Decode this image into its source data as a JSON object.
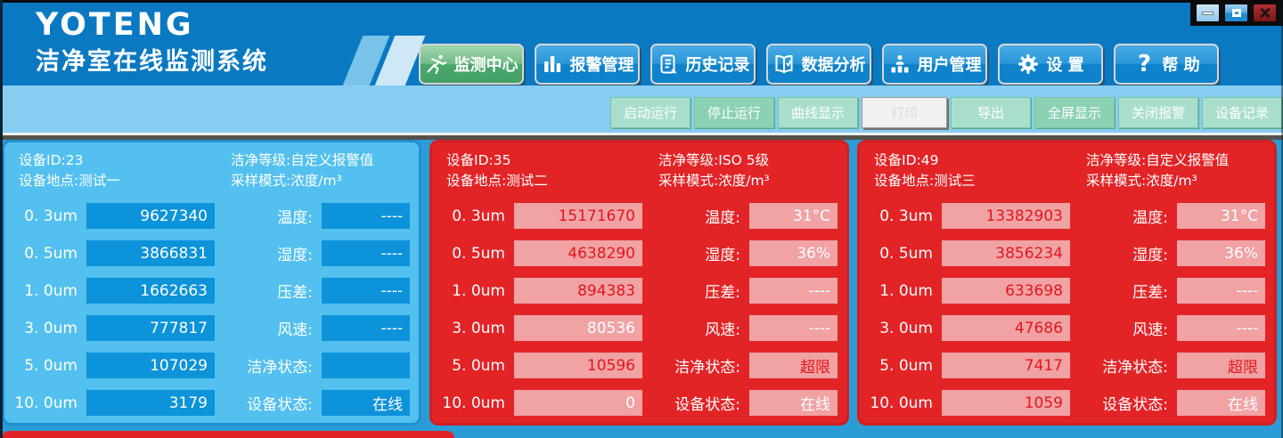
{
  "colors": {
    "header_blue": "#0a79c2",
    "toolbar_strip": "#87cdf2",
    "content_bg": "#2b9cd6",
    "panel_normal_bg": "#53c0ef",
    "panel_normal_box": "#0d93da",
    "panel_alarm_bg": "#e22427",
    "panel_alarm_box": "#f0a2a4",
    "alarm_text": "#e3171c",
    "nav_blue": "#1f8ed2",
    "nav_green_active": "#4aa76b",
    "toolbar_light_green": "#a9decd",
    "toolbar_dark_green": "#8bd2b3"
  },
  "header": {
    "brand": "YOTENG",
    "subtitle": "洁净室在线监测系统",
    "nav": [
      {
        "id": "monitor-center",
        "label": "监测中心",
        "icon": "runner-icon",
        "active": true
      },
      {
        "id": "alarm-management",
        "label": "报警管理",
        "icon": "bar-chart-icon",
        "active": false
      },
      {
        "id": "history-records",
        "label": "历史记录",
        "icon": "document-icon",
        "active": false
      },
      {
        "id": "data-analysis",
        "label": "数据分析",
        "icon": "open-book-icon",
        "active": false
      },
      {
        "id": "user-management",
        "label": "用户管理",
        "icon": "users-icon",
        "active": false
      },
      {
        "id": "settings",
        "label": "设 置",
        "icon": "gear-icon",
        "active": false
      },
      {
        "id": "help",
        "label": "帮 助",
        "icon": "question-icon",
        "active": false
      }
    ]
  },
  "window_controls": [
    {
      "id": "minimize",
      "icon": "minimize-icon"
    },
    {
      "id": "maximize",
      "icon": "maximize-icon"
    },
    {
      "id": "close",
      "icon": "close-icon"
    }
  ],
  "toolbar": {
    "buttons": [
      {
        "id": "start-run",
        "label": "启动运行",
        "style": "light"
      },
      {
        "id": "stop-run",
        "label": "停止运行",
        "style": "dark"
      },
      {
        "id": "curve-view",
        "label": "曲线显示",
        "style": "light"
      },
      {
        "id": "print",
        "label": "打印",
        "style": "white"
      },
      {
        "id": "export",
        "label": "导出",
        "style": "light"
      },
      {
        "id": "full-screen",
        "label": "全屏显示",
        "style": "dark"
      },
      {
        "id": "close-alarm",
        "label": "关闭报警",
        "style": "light"
      },
      {
        "id": "device-record",
        "label": "设备记录",
        "style": "light"
      }
    ]
  },
  "panels": [
    {
      "theme": "normal",
      "device_id": "设备ID:23",
      "location": "设备地点:测试一",
      "clean_grade": "洁净等级:自定义报警值",
      "sample_mode": "采样模式:浓度/m³",
      "particles": [
        {
          "label": "0. 3um",
          "value": "9627340",
          "alarm": false
        },
        {
          "label": "0. 5um",
          "value": "3866831",
          "alarm": false
        },
        {
          "label": "1. 0um",
          "value": "1662663",
          "alarm": false
        },
        {
          "label": "3. 0um",
          "value": "777817",
          "alarm": false
        },
        {
          "label": "5. 0um",
          "value": "107029",
          "alarm": false
        },
        {
          "label": "10. 0um",
          "value": "3179",
          "alarm": false
        }
      ],
      "env": [
        {
          "label": "温度:",
          "value": "----",
          "alarm": false
        },
        {
          "label": "湿度:",
          "value": "----",
          "alarm": false
        },
        {
          "label": "压差:",
          "value": "----",
          "alarm": false
        },
        {
          "label": "风速:",
          "value": "----",
          "alarm": false
        },
        {
          "label": "洁净状态:",
          "value": "",
          "alarm": false
        },
        {
          "label": "设备状态:",
          "value": "在线",
          "alarm": false
        }
      ]
    },
    {
      "theme": "alarm",
      "device_id": "设备ID:35",
      "location": "设备地点:测试二",
      "clean_grade": "洁净等级:ISO 5级",
      "sample_mode": "采样模式:浓度/m³",
      "particles": [
        {
          "label": "0. 3um",
          "value": "15171670",
          "alarm": true
        },
        {
          "label": "0. 5um",
          "value": "4638290",
          "alarm": true
        },
        {
          "label": "1. 0um",
          "value": "894383",
          "alarm": true
        },
        {
          "label": "3. 0um",
          "value": "80536",
          "alarm": false
        },
        {
          "label": "5. 0um",
          "value": "10596",
          "alarm": true
        },
        {
          "label": "10. 0um",
          "value": "0",
          "alarm": false
        }
      ],
      "env": [
        {
          "label": "温度:",
          "value": "31°C",
          "alarm": false
        },
        {
          "label": "湿度:",
          "value": "36%",
          "alarm": false
        },
        {
          "label": "压差:",
          "value": "----",
          "alarm": false
        },
        {
          "label": "风速:",
          "value": "----",
          "alarm": false
        },
        {
          "label": "洁净状态:",
          "value": "超限",
          "alarm": true
        },
        {
          "label": "设备状态:",
          "value": "在线",
          "alarm": false
        }
      ]
    },
    {
      "theme": "alarm",
      "device_id": "设备ID:49",
      "location": "设备地点:测试三",
      "clean_grade": "洁净等级:自定义报警值",
      "sample_mode": "采样模式:浓度/m³",
      "particles": [
        {
          "label": "0. 3um",
          "value": "13382903",
          "alarm": true
        },
        {
          "label": "0. 5um",
          "value": "3856234",
          "alarm": true
        },
        {
          "label": "1. 0um",
          "value": "633698",
          "alarm": true
        },
        {
          "label": "3. 0um",
          "value": "47686",
          "alarm": true
        },
        {
          "label": "5. 0um",
          "value": "7417",
          "alarm": true
        },
        {
          "label": "10. 0um",
          "value": "1059",
          "alarm": true
        }
      ],
      "env": [
        {
          "label": "温度:",
          "value": "31°C",
          "alarm": false
        },
        {
          "label": "湿度:",
          "value": "36%",
          "alarm": false
        },
        {
          "label": "压差:",
          "value": "----",
          "alarm": false
        },
        {
          "label": "风速:",
          "value": "----",
          "alarm": false
        },
        {
          "label": "洁净状态:",
          "value": "超限",
          "alarm": true
        },
        {
          "label": "设备状态:",
          "value": "在线",
          "alarm": false
        }
      ]
    }
  ]
}
